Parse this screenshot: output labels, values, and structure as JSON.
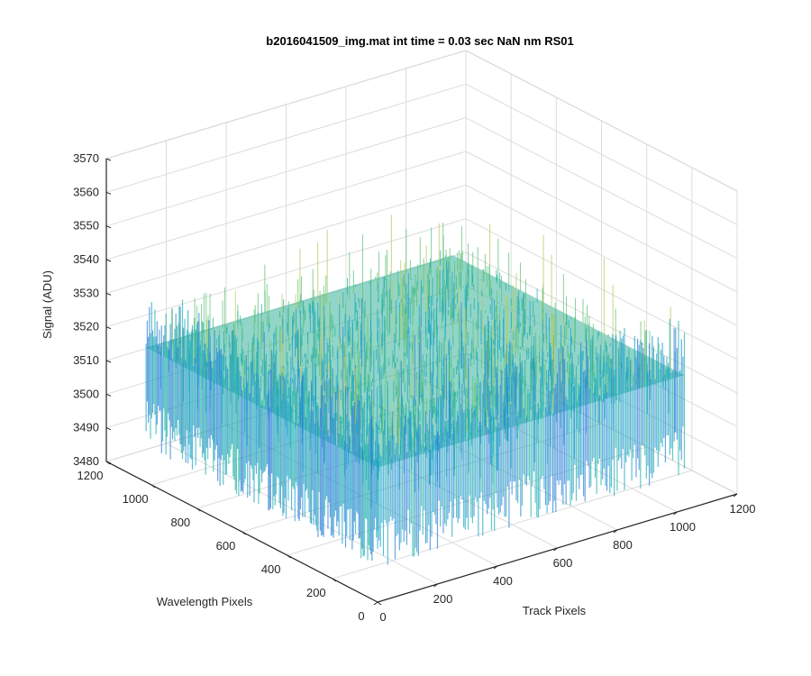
{
  "chart_data": {
    "type": "surface",
    "title": "b2016041509_img.mat int time = 0.03 sec  NaN nm RS01",
    "xlabel": "Track Pixels",
    "ylabel": "Wavelength Pixels",
    "zlabel": "Signal (ADU)",
    "x_ticks": [
      "0",
      "200",
      "400",
      "600",
      "800",
      "1000",
      "1200"
    ],
    "y_ticks": [
      "0",
      "200",
      "400",
      "600",
      "800",
      "1000",
      "1200"
    ],
    "z_ticks": [
      "3480",
      "3490",
      "3500",
      "3510",
      "3520",
      "3530",
      "3540",
      "3550",
      "3560",
      "3570"
    ],
    "xlim": [
      0,
      1200
    ],
    "ylim": [
      0,
      1200
    ],
    "zlim": [
      3480,
      3570
    ],
    "data_extent": {
      "x": [
        0,
        1024
      ],
      "y": [
        0,
        1024
      ]
    },
    "signal_mean": 3520,
    "signal_spread": [
      3490,
      3560
    ],
    "grid": true,
    "colormap": [
      "#2a7fd6",
      "#1aa3c8",
      "#21b2a6",
      "#5ec27a",
      "#b7c85a",
      "#e3c84a"
    ]
  }
}
